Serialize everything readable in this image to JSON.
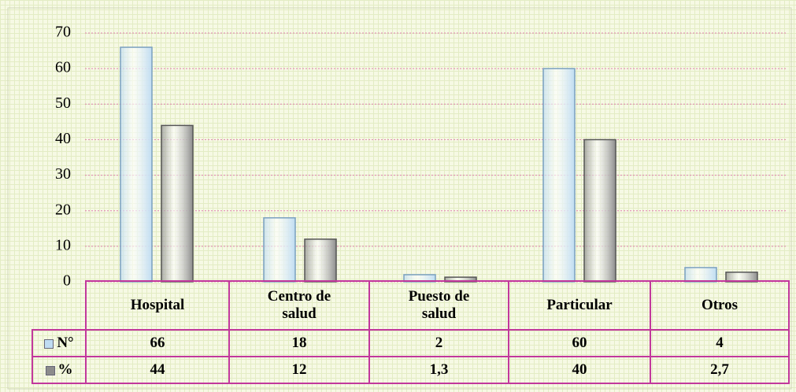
{
  "chart_data": {
    "type": "bar",
    "categories": [
      "Hospital",
      "Centro de salud",
      "Puesto de salud",
      "Particular",
      "Otros"
    ],
    "series": [
      {
        "name": "N°",
        "color": "#bfdcf2",
        "values": [
          66,
          18,
          2,
          60,
          4
        ]
      },
      {
        "name": "%",
        "color": "#8c8c8c",
        "values": [
          44,
          12,
          1.3,
          40,
          2.7
        ],
        "value_labels": [
          "44",
          "12",
          "1,3",
          "40",
          "2,7"
        ]
      }
    ],
    "ylim": [
      0,
      70
    ],
    "yticks": [
      0,
      10,
      20,
      30,
      40,
      50,
      60,
      70
    ],
    "grid": true
  }
}
